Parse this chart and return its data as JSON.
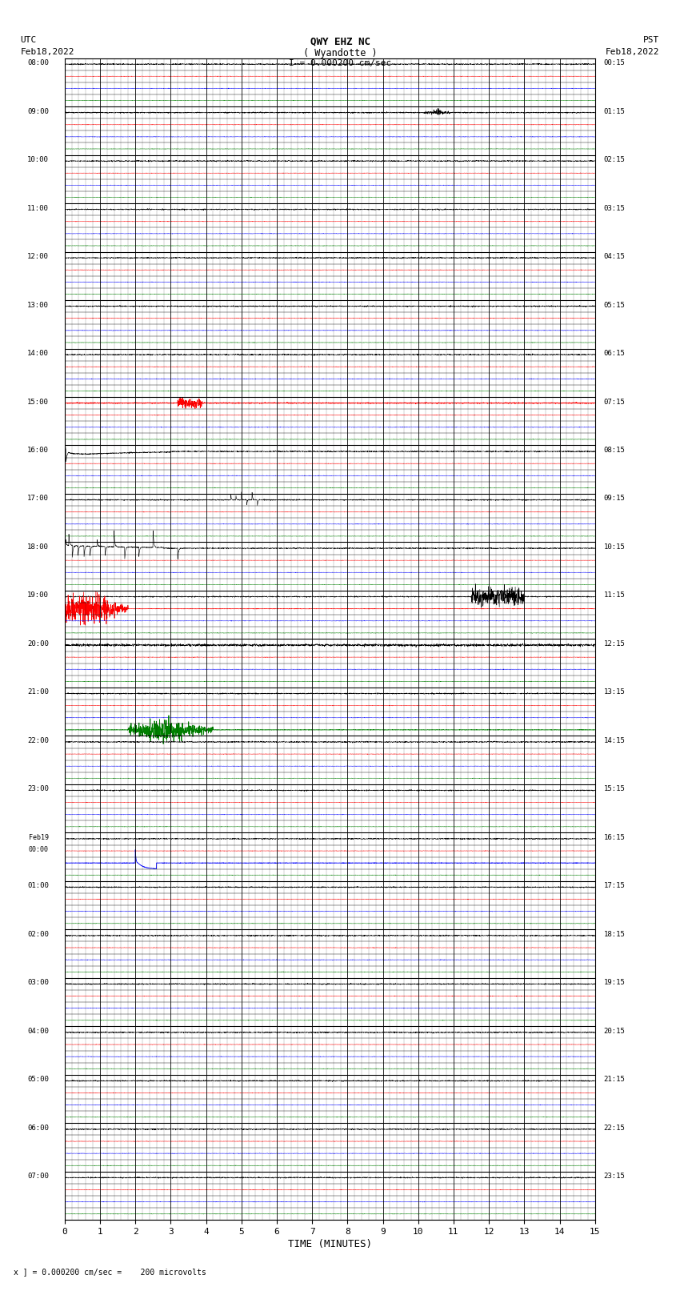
{
  "title_line1": "QWY EHZ NC",
  "title_line2": "( Wyandotte )",
  "scale_text": "I = 0.000200 cm/sec",
  "utc_label": "UTC",
  "utc_date": "Feb18,2022",
  "pst_label": "PST",
  "pst_date": "Feb18,2022",
  "bottom_label": "x ] = 0.000200 cm/sec =    200 microvolts",
  "xlabel": "TIME (MINUTES)",
  "left_times_utc": [
    "08:00",
    "09:00",
    "10:00",
    "11:00",
    "12:00",
    "13:00",
    "14:00",
    "15:00",
    "16:00",
    "17:00",
    "18:00",
    "19:00",
    "20:00",
    "21:00",
    "22:00",
    "23:00",
    "Feb19\n00:00",
    "01:00",
    "02:00",
    "03:00",
    "04:00",
    "05:00",
    "06:00",
    "07:00"
  ],
  "right_times_pst": [
    "00:15",
    "01:15",
    "02:15",
    "03:15",
    "04:15",
    "05:15",
    "06:15",
    "07:15",
    "08:15",
    "09:15",
    "10:15",
    "11:15",
    "12:15",
    "13:15",
    "14:15",
    "15:15",
    "16:15",
    "17:15",
    "18:15",
    "19:15",
    "20:15",
    "21:15",
    "22:15",
    "23:15"
  ],
  "n_hours": 24,
  "minutes": 15,
  "subrows_per_hour": 4,
  "background_color": "#ffffff",
  "noise_amplitude_black": 0.025,
  "noise_amplitude_color": 0.012
}
